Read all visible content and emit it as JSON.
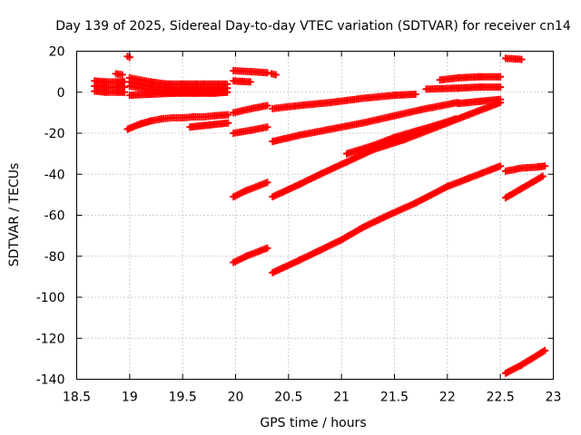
{
  "chart_data": {
    "type": "scatter",
    "title": "Day 139 of 2025, Sidereal Day-to-day VTEC variation (SDTVAR) for receiver cn14",
    "xlabel": "GPS time / hours",
    "ylabel": "SDTVAR / TECUs",
    "xlim": [
      18.5,
      23
    ],
    "ylim": [
      -140,
      20
    ],
    "xticks": [
      18.5,
      19,
      19.5,
      20,
      20.5,
      21,
      21.5,
      22,
      22.5,
      23
    ],
    "xtick_labels": [
      "18.5",
      "19",
      "19.5",
      "20",
      "20.5",
      "21",
      "21.5",
      "22",
      "22.5",
      "23"
    ],
    "yticks": [
      -140,
      -120,
      -100,
      -80,
      -60,
      -40,
      -20,
      0,
      20
    ],
    "ytick_labels": [
      "-140",
      "-120",
      "-100",
      "-80",
      "-60",
      "-40",
      "-20",
      "0",
      "20"
    ],
    "grid": true,
    "marker_color": "#ff0000",
    "series": [
      {
        "name": "s1",
        "x": [
          18.67,
          18.78,
          18.88,
          18.95
        ],
        "y": [
          3,
          2.5,
          2.5,
          2.5
        ],
        "band": 5
      },
      {
        "name": "s2",
        "x": [
          18.87,
          18.93
        ],
        "y": [
          9,
          8.5
        ]
      },
      {
        "name": "s3",
        "x": [
          18.98,
          19.0
        ],
        "y": [
          17.5,
          17
        ]
      },
      {
        "name": "s4",
        "x": [
          19.0,
          19.1,
          19.2,
          19.35,
          19.5,
          19.7,
          19.92
        ],
        "y": [
          5,
          4,
          3,
          2,
          2,
          2,
          2
        ],
        "band": 4
      },
      {
        "name": "s5",
        "x": [
          19.0,
          19.2,
          19.4,
          19.6,
          19.8,
          19.92
        ],
        "y": [
          -1.5,
          -1,
          -0.5,
          -0.5,
          -0.5,
          0
        ]
      },
      {
        "name": "s6",
        "x": [
          18.98,
          19.1,
          19.2,
          19.3,
          19.4,
          19.5,
          19.6,
          19.7,
          19.8,
          19.93
        ],
        "y": [
          -18,
          -15.5,
          -14,
          -13,
          -12.5,
          -12.5,
          -12,
          -12,
          -11.5,
          -11
        ]
      },
      {
        "name": "s7",
        "x": [
          19.57,
          19.75,
          19.93
        ],
        "y": [
          -17,
          -16,
          -15
        ]
      },
      {
        "name": "s8",
        "x": [
          19.98,
          20.15,
          20.3
        ],
        "y": [
          10.5,
          10,
          9.5
        ]
      },
      {
        "name": "s9",
        "x": [
          20.34,
          20.38
        ],
        "y": [
          9,
          8.5
        ]
      },
      {
        "name": "s10",
        "x": [
          19.98,
          20.14
        ],
        "y": [
          5.5,
          5
        ]
      },
      {
        "name": "s11",
        "x": [
          19.98,
          20.15,
          20.3
        ],
        "y": [
          -10,
          -8,
          -6.5
        ]
      },
      {
        "name": "s12",
        "x": [
          19.98,
          20.15,
          20.3
        ],
        "y": [
          -20,
          -18.5,
          -17
        ]
      },
      {
        "name": "s13",
        "x": [
          20.35,
          20.6,
          20.9,
          21.2,
          21.5,
          21.7
        ],
        "y": [
          -8,
          -6.5,
          -5,
          -3,
          -1.5,
          -1
        ]
      },
      {
        "name": "s14",
        "x": [
          20.35,
          20.6,
          20.9,
          21.2,
          21.5,
          21.8,
          22.1
        ],
        "y": [
          -24,
          -21,
          -18,
          -15,
          -11.5,
          -8,
          -5
        ]
      },
      {
        "name": "s15",
        "x": [
          21.8,
          22.1,
          22.3,
          22.5
        ],
        "y": [
          1.5,
          2,
          2.5,
          2.5
        ]
      },
      {
        "name": "s16",
        "x": [
          21.93,
          22.1,
          22.3,
          22.5
        ],
        "y": [
          6,
          7,
          7.5,
          7.5
        ]
      },
      {
        "name": "s17",
        "x": [
          22.1,
          22.3,
          22.5
        ],
        "y": [
          -5.5,
          -4.5,
          -3.5
        ]
      },
      {
        "name": "s18",
        "x": [
          21.5,
          21.7,
          21.9,
          22.08
        ],
        "y": [
          -22,
          -19,
          -16,
          -13
        ]
      },
      {
        "name": "s19",
        "x": [
          21.05,
          21.3,
          21.5
        ],
        "y": [
          -30,
          -26,
          -22
        ]
      },
      {
        "name": "s20",
        "x": [
          20.35,
          20.6,
          20.8,
          21.05
        ],
        "y": [
          -51,
          -45,
          -40,
          -34
        ]
      },
      {
        "name": "s21",
        "x": [
          21.05,
          21.3,
          21.6,
          21.9,
          22.2,
          22.5
        ],
        "y": [
          -34,
          -28,
          -23,
          -17,
          -11,
          -5
        ]
      },
      {
        "name": "s22",
        "x": [
          19.98,
          20.1,
          20.3
        ],
        "y": [
          -51,
          -48,
          -44
        ]
      },
      {
        "name": "s23",
        "x": [
          19.98,
          20.1,
          20.3
        ],
        "y": [
          -83,
          -80,
          -76
        ]
      },
      {
        "name": "s24",
        "x": [
          20.35,
          20.6,
          20.8,
          21.0,
          21.2,
          21.4,
          21.7,
          22.0,
          22.2,
          22.4,
          22.5
        ],
        "y": [
          -88,
          -82,
          -77,
          -72,
          -66,
          -61,
          -54,
          -46,
          -42,
          -38,
          -36
        ]
      },
      {
        "name": "s25",
        "x": [
          22.55,
          22.7,
          22.85,
          22.92
        ],
        "y": [
          -38.5,
          -37,
          -36.5,
          -36
        ]
      },
      {
        "name": "s26",
        "x": [
          22.55,
          22.7,
          22.9
        ],
        "y": [
          -51.5,
          -47,
          -41
        ]
      },
      {
        "name": "s27",
        "x": [
          22.55,
          22.7,
          22.92
        ],
        "y": [
          -137,
          -133,
          -126
        ]
      },
      {
        "name": "s28",
        "x": [
          22.55,
          22.7
        ],
        "y": [
          16.5,
          16
        ]
      }
    ]
  }
}
